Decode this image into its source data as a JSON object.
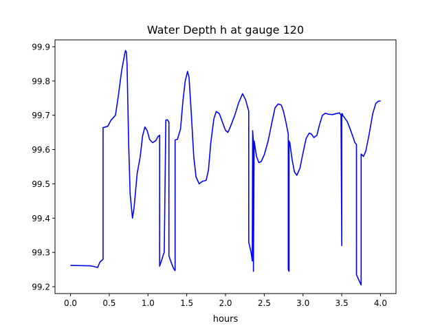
{
  "chart_data": {
    "type": "line",
    "title": "Water Depth h at gauge 120",
    "xlabel": "hours",
    "ylabel": "",
    "xlim": [
      -0.2,
      4.2
    ],
    "ylim": [
      99.18,
      99.92
    ],
    "xticks": [
      0.0,
      0.5,
      1.0,
      1.5,
      2.0,
      2.5,
      3.0,
      3.5,
      4.0
    ],
    "xtick_labels": [
      "0.0",
      "0.5",
      "1.0",
      "1.5",
      "2.0",
      "2.5",
      "3.0",
      "3.5",
      "4.0"
    ],
    "yticks": [
      99.2,
      99.3,
      99.4,
      99.5,
      99.6,
      99.7,
      99.8,
      99.9
    ],
    "ytick_labels": [
      "99.2",
      "99.3",
      "99.4",
      "99.5",
      "99.6",
      "99.7",
      "99.8",
      "99.9"
    ],
    "grid": false,
    "legend": "none",
    "series": [
      {
        "color": "#0000ff",
        "x": [
          0.0,
          0.25,
          0.3,
          0.35,
          0.38,
          0.42,
          0.42,
          0.48,
          0.52,
          0.58,
          0.62,
          0.66,
          0.7,
          0.71,
          0.72,
          0.73,
          0.75,
          0.77,
          0.8,
          0.82,
          0.86,
          0.9,
          0.93,
          0.96,
          0.99,
          1.02,
          1.06,
          1.1,
          1.13,
          1.15,
          1.15,
          1.18,
          1.2,
          1.21,
          1.23,
          1.25,
          1.27,
          1.27,
          1.3,
          1.33,
          1.35,
          1.35,
          1.38,
          1.42,
          1.45,
          1.48,
          1.51,
          1.53,
          1.56,
          1.59,
          1.62,
          1.66,
          1.7,
          1.75,
          1.78,
          1.81,
          1.85,
          1.88,
          1.92,
          1.96,
          2.0,
          2.03,
          2.06,
          2.12,
          2.17,
          2.22,
          2.26,
          2.3,
          2.3,
          2.33,
          2.34,
          2.345,
          2.35,
          2.36,
          2.36,
          2.37,
          2.38,
          2.4,
          2.43,
          2.46,
          2.5,
          2.55,
          2.6,
          2.64,
          2.68,
          2.72,
          2.75,
          2.78,
          2.81,
          2.81,
          2.82,
          2.82,
          2.83,
          2.86,
          2.89,
          2.92,
          2.96,
          3.0,
          3.04,
          3.08,
          3.11,
          3.14,
          3.18,
          3.21,
          3.25,
          3.29,
          3.33,
          3.38,
          3.43,
          3.47,
          3.49,
          3.5,
          3.5,
          3.51,
          3.51,
          3.53,
          3.57,
          3.6,
          3.64,
          3.67,
          3.69,
          3.69,
          3.72,
          3.74,
          3.75,
          3.75,
          3.78,
          3.81,
          3.85,
          3.9,
          3.94,
          3.97,
          4.0
        ],
        "y": [
          99.262,
          99.261,
          99.259,
          99.256,
          99.272,
          99.28,
          99.664,
          99.668,
          99.685,
          99.7,
          99.76,
          99.83,
          99.88,
          99.889,
          99.885,
          99.85,
          99.62,
          99.47,
          99.4,
          99.43,
          99.53,
          99.58,
          99.64,
          99.666,
          99.655,
          99.63,
          99.62,
          99.626,
          99.638,
          99.642,
          99.26,
          99.28,
          99.295,
          99.3,
          99.686,
          99.687,
          99.68,
          99.29,
          99.27,
          99.253,
          99.247,
          99.628,
          99.63,
          99.66,
          99.74,
          99.8,
          99.828,
          99.81,
          99.7,
          99.58,
          99.52,
          99.5,
          99.507,
          99.51,
          99.54,
          99.62,
          99.69,
          99.711,
          99.705,
          99.68,
          99.656,
          99.65,
          99.665,
          99.7,
          99.737,
          99.763,
          99.745,
          99.712,
          99.33,
          99.3,
          99.285,
          99.275,
          99.655,
          99.62,
          99.245,
          99.625,
          99.61,
          99.58,
          99.562,
          99.565,
          99.585,
          99.625,
          99.68,
          99.722,
          99.733,
          99.73,
          99.71,
          99.68,
          99.645,
          99.25,
          99.245,
          99.625,
          99.62,
          99.57,
          99.535,
          99.525,
          99.545,
          99.59,
          99.632,
          99.648,
          99.645,
          99.635,
          99.642,
          99.67,
          99.7,
          99.706,
          99.703,
          99.702,
          99.705,
          99.707,
          99.7,
          99.32,
          99.705,
          99.704,
          99.7,
          99.695,
          99.682,
          99.665,
          99.64,
          99.62,
          99.615,
          99.235,
          99.22,
          99.21,
          99.205,
          99.587,
          99.58,
          99.595,
          99.64,
          99.705,
          99.735,
          99.741,
          99.742
        ]
      }
    ]
  }
}
